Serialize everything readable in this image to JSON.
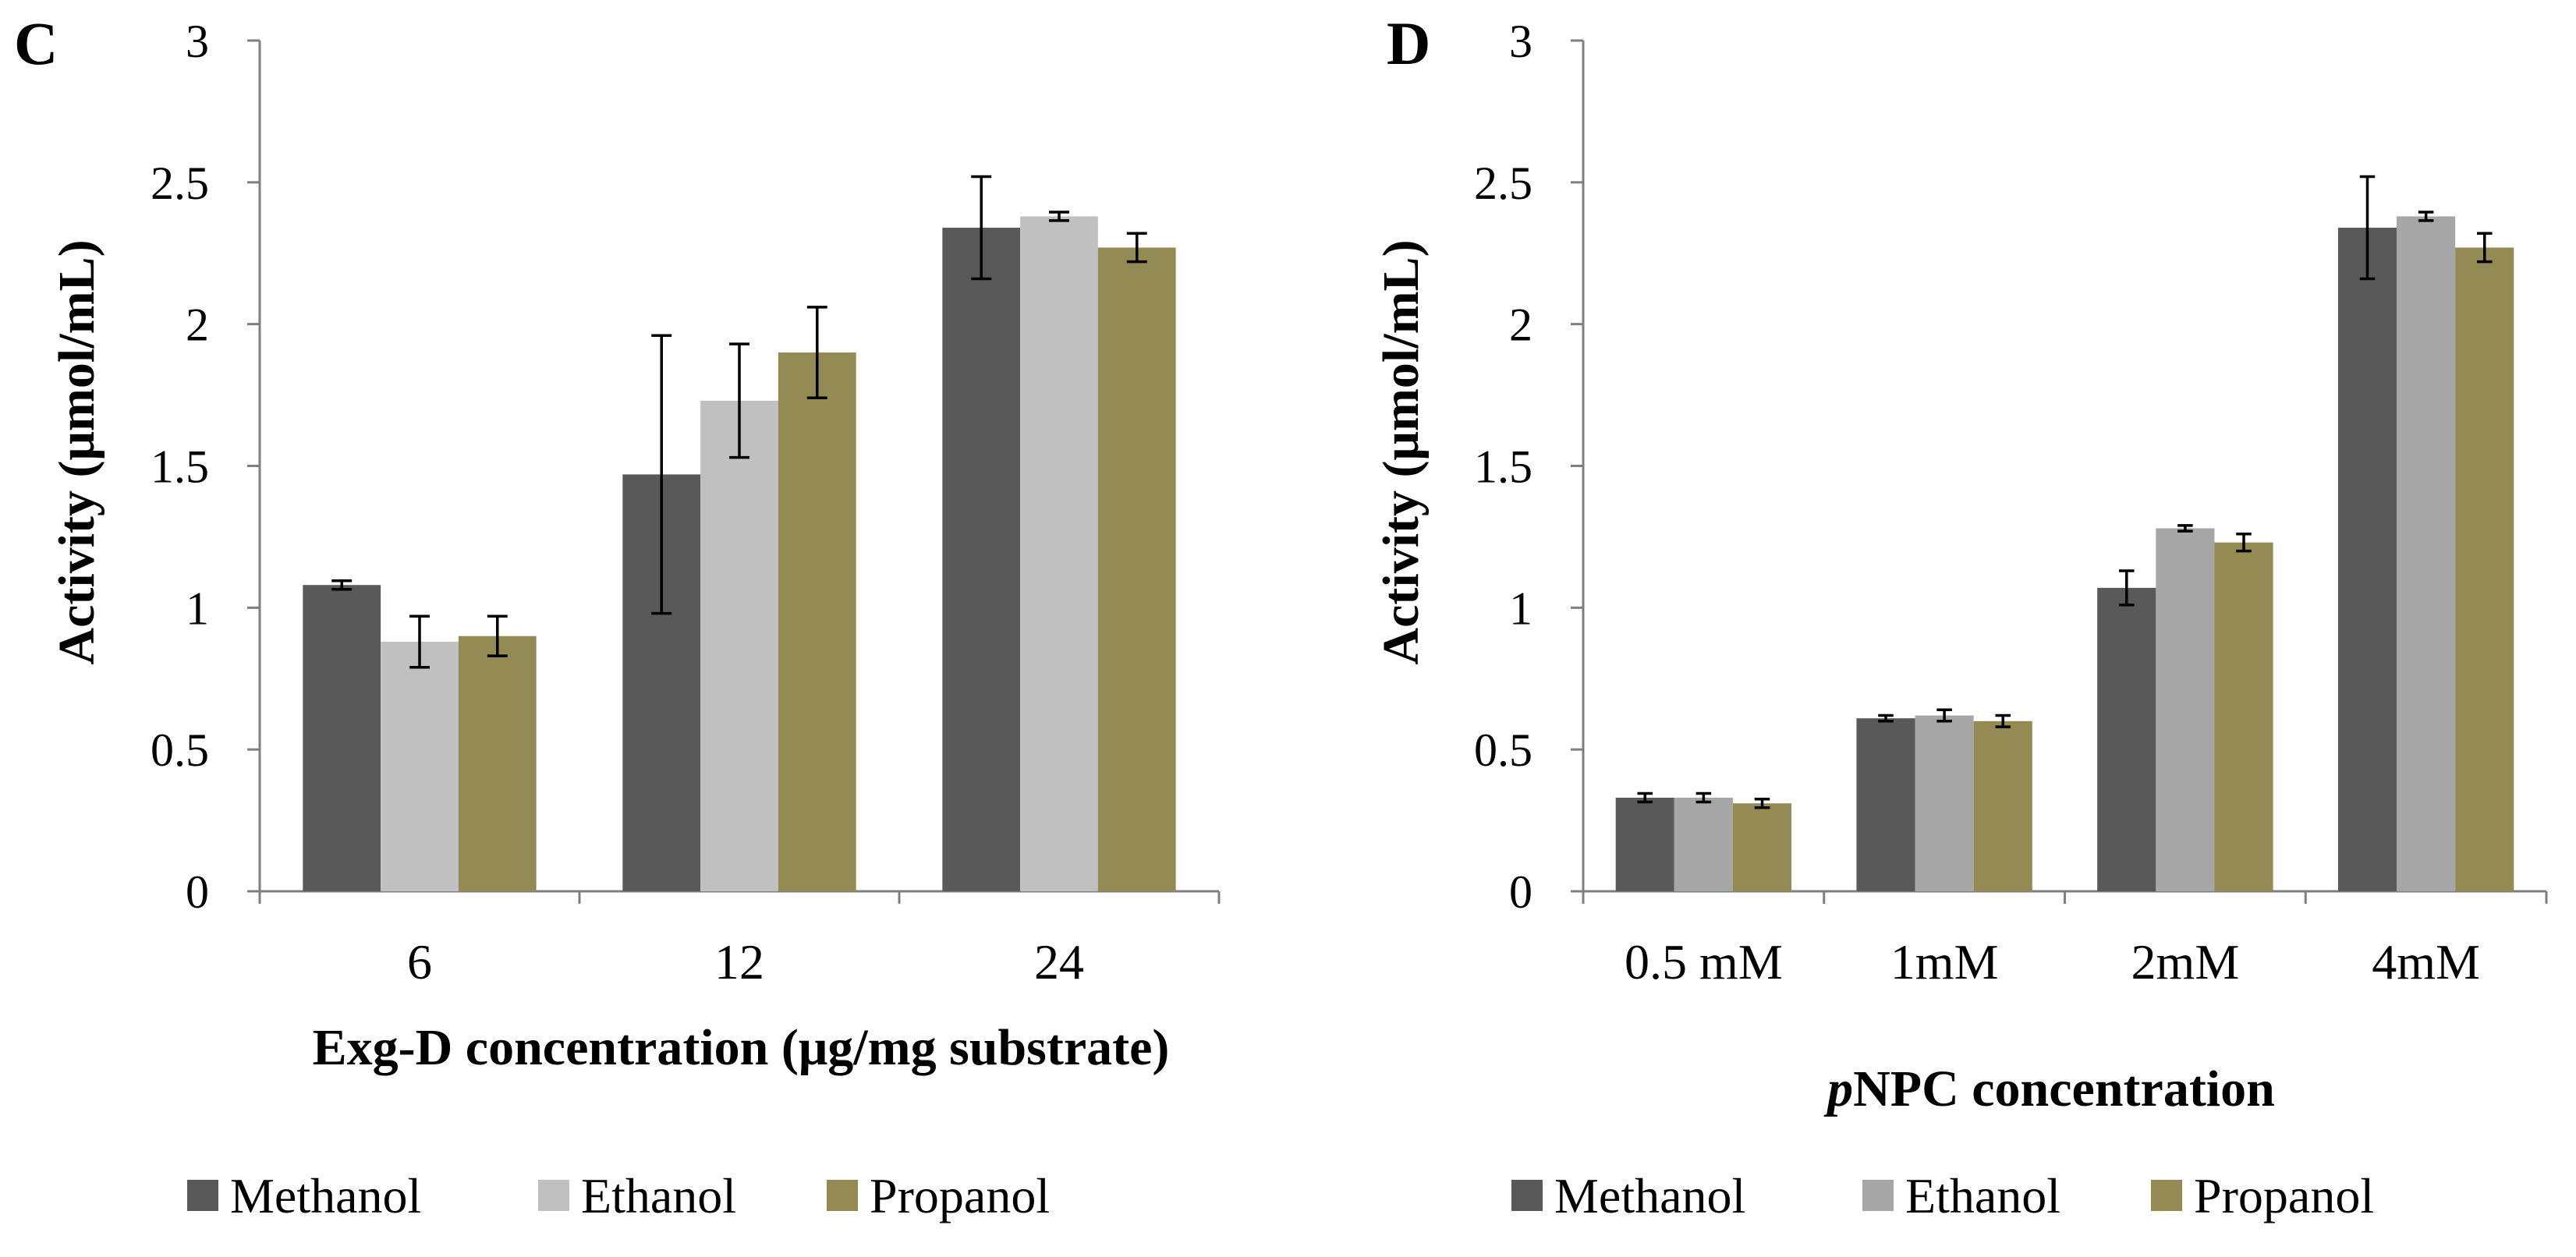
{
  "chart_data": [
    {
      "panel": "C",
      "type": "bar",
      "title": "",
      "xlabel": "Exg-D concentration (μg/mg substrate)",
      "ylabel": "Activity (μmol/mL)",
      "ylim": [
        0,
        3
      ],
      "yticks": [
        "0",
        "0.5",
        "1",
        "1.5",
        "2",
        "2.5",
        "3"
      ],
      "categories": [
        "6",
        "12",
        "24"
      ],
      "grid": false,
      "legend_position": "bottom",
      "series": [
        {
          "name": "Methanol",
          "color": "#595959",
          "values": [
            1.08,
            1.47,
            2.34
          ],
          "errors": [
            0.015,
            0.49,
            0.18
          ]
        },
        {
          "name": "Ethanol",
          "color": "#c0c0c0",
          "values": [
            0.88,
            1.73,
            2.38
          ],
          "errors": [
            0.09,
            0.2,
            0.015
          ]
        },
        {
          "name": "Propanol",
          "color": "#948a54",
          "values": [
            0.9,
            1.9,
            2.27
          ],
          "errors": [
            0.07,
            0.16,
            0.05
          ]
        }
      ]
    },
    {
      "panel": "D",
      "type": "bar",
      "title": "",
      "xlabel_prefix": "p",
      "xlabel_rest": "NPC concentration",
      "ylabel": "Activity (μmol/mL)",
      "ylim": [
        0,
        3
      ],
      "yticks": [
        "0",
        "0.5",
        "1",
        "1.5",
        "2",
        "2.5",
        "3"
      ],
      "categories": [
        "0.5 mM",
        "1mM",
        "2mM",
        "4mM"
      ],
      "grid": false,
      "legend_position": "bottom",
      "series": [
        {
          "name": "Methanol",
          "color": "#595959",
          "values": [
            0.33,
            0.61,
            1.07,
            2.34
          ],
          "errors": [
            0.015,
            0.01,
            0.06,
            0.18
          ]
        },
        {
          "name": "Ethanol",
          "color": "#a6a6a6",
          "values": [
            0.33,
            0.62,
            1.28,
            2.38
          ],
          "errors": [
            0.015,
            0.02,
            0.01,
            0.015
          ]
        },
        {
          "name": "Propanol",
          "color": "#948a54",
          "values": [
            0.31,
            0.6,
            1.23,
            2.27
          ],
          "errors": [
            0.015,
            0.02,
            0.03,
            0.05
          ]
        }
      ]
    }
  ]
}
